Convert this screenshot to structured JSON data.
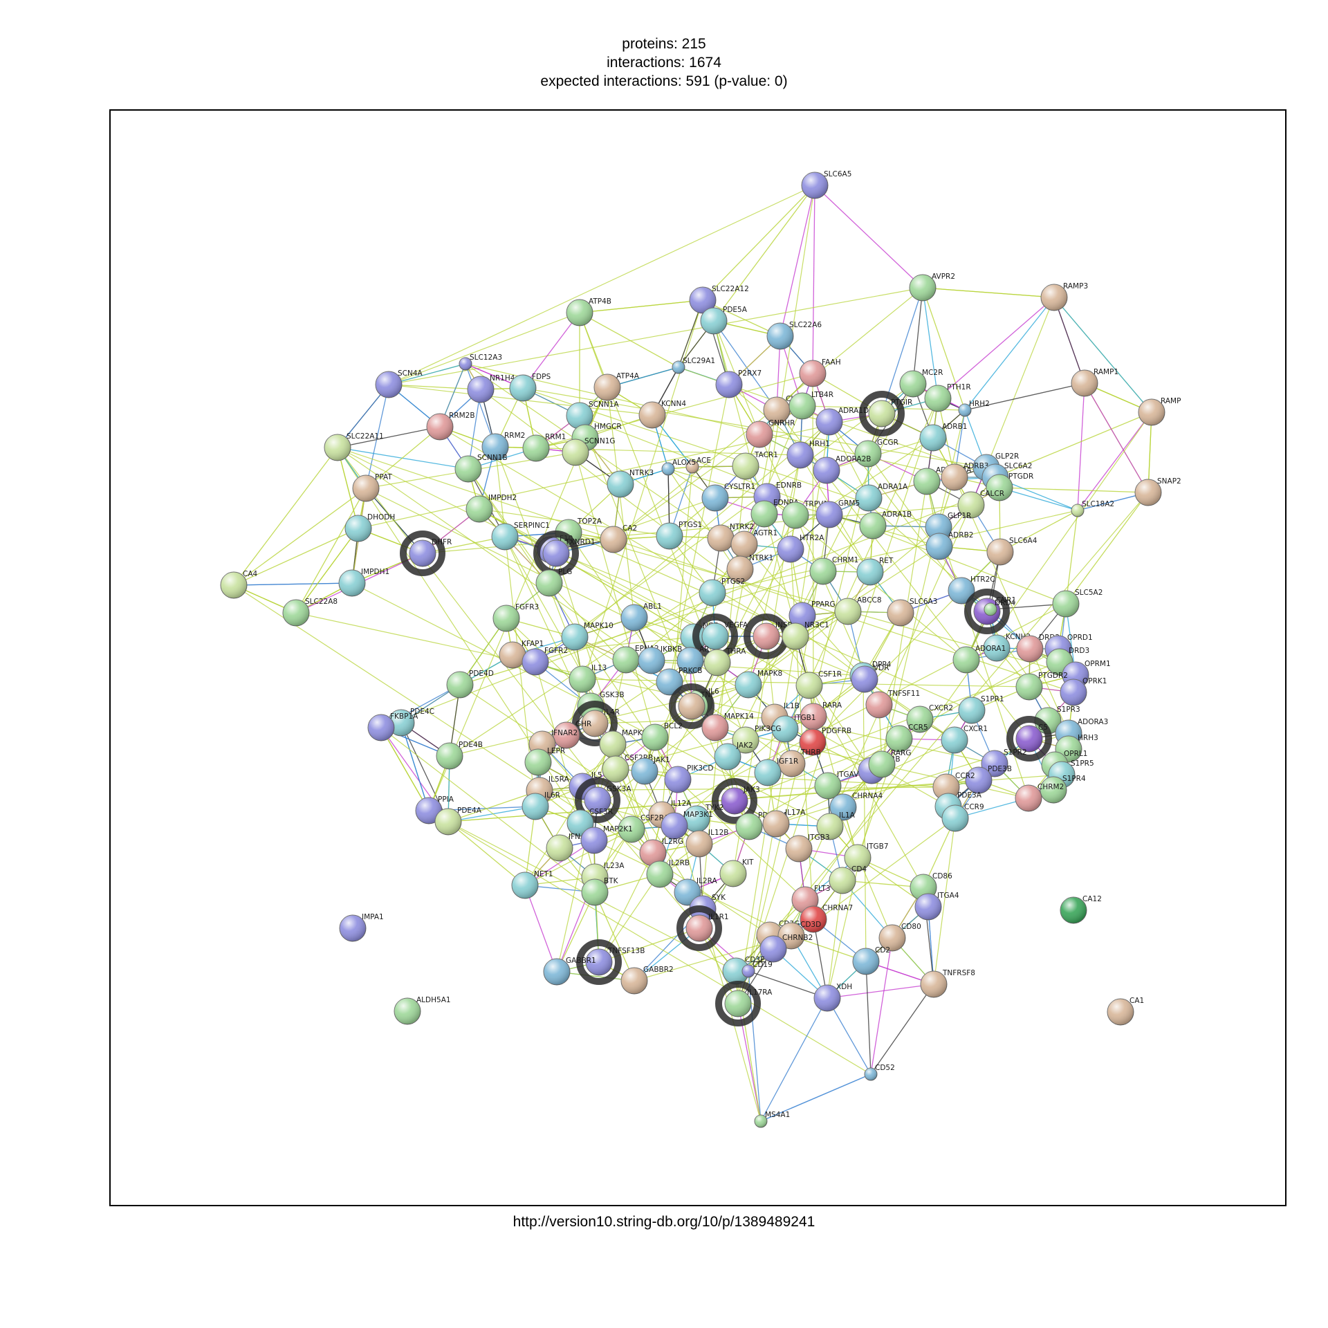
{
  "header": {
    "proteins": "proteins: 215",
    "interactions": "interactions: 1674",
    "expected": "expected interactions: 591 (p-value: 0)"
  },
  "footer": {
    "url": "http://version10.string-db.org/10/p/1389489241"
  },
  "colors": {
    "edge_textmining": "#b6d334",
    "edge_experimental": "#c63bd0",
    "edge_database": "#2ba7d8",
    "edge_coexpression": "#333333",
    "edge_coexpression_blue": "#3a7fcf",
    "highlight_ring": "#2b2b2b",
    "node_palette": [
      "#9fd89a",
      "#8f8fe0",
      "#8ad0d4",
      "#d8b79a",
      "#e09a9a",
      "#c9e2a0",
      "#b0e0b0",
      "#7fb8d8",
      "#8c5fd0",
      "#e04848",
      "#3aa65a"
    ]
  },
  "nodes": [
    {
      "id": "SLC6A5",
      "c": 1
    },
    {
      "id": "AVPR2",
      "c": 0
    },
    {
      "id": "RAMP3",
      "c": 3
    },
    {
      "id": "RAMP1",
      "c": 3
    },
    {
      "id": "RAMP",
      "c": 3
    },
    {
      "id": "SNAP2",
      "c": 3
    },
    {
      "id": "SLC22A12",
      "c": 1
    },
    {
      "id": "PDE5A",
      "c": 2
    },
    {
      "id": "ATP4B",
      "c": 0
    },
    {
      "id": "SLC22A6",
      "c": 7
    },
    {
      "id": "SLC12A3",
      "c": 1
    },
    {
      "id": "SLC29A1",
      "c": 7
    },
    {
      "id": "P2RX7",
      "c": 1
    },
    {
      "id": "FAAH",
      "c": 4
    },
    {
      "id": "MC2R",
      "c": 0
    },
    {
      "id": "PTH1R",
      "c": 0
    },
    {
      "id": "SCN4A",
      "c": 1
    },
    {
      "id": "NR1H4",
      "c": 1
    },
    {
      "id": "FDPS",
      "c": 2
    },
    {
      "id": "ATP4A",
      "c": 3
    },
    {
      "id": "SCNN1A",
      "c": 2
    },
    {
      "id": "KCNN4",
      "c": 3
    },
    {
      "id": "CHRM3",
      "c": 3
    },
    {
      "id": "LTB4R",
      "c": 0
    },
    {
      "id": "PTGIR",
      "c": 5,
      "ring": true
    },
    {
      "id": "HRH2",
      "c": 7
    },
    {
      "id": "ADRA1D",
      "c": 1
    },
    {
      "id": "RRM2B",
      "c": 4
    },
    {
      "id": "HMGCR",
      "c": 0
    },
    {
      "id": "GNRHR",
      "c": 4
    },
    {
      "id": "ADRB1",
      "c": 2
    },
    {
      "id": "SLC22A11",
      "c": 5
    },
    {
      "id": "RRM2",
      "c": 7
    },
    {
      "id": "RRM1",
      "c": 0
    },
    {
      "id": "SCNN1G",
      "c": 5
    },
    {
      "id": "HRH1",
      "c": 1
    },
    {
      "id": "GCGR",
      "c": 0
    },
    {
      "id": "GLP2R",
      "c": 7
    },
    {
      "id": "SCNN1B",
      "c": 0
    },
    {
      "id": "ACE",
      "c": 3
    },
    {
      "id": "ALOX5",
      "c": 7
    },
    {
      "id": "TACR1",
      "c": 5
    },
    {
      "id": "ADORA2B",
      "c": 1
    },
    {
      "id": "ADORA2A",
      "c": 0
    },
    {
      "id": "ADRB3",
      "c": 3
    },
    {
      "id": "SLC6A2",
      "c": 7
    },
    {
      "id": "PTGDR",
      "c": 0
    },
    {
      "id": "PPAT",
      "c": 3
    },
    {
      "id": "IMPDH2",
      "c": 0
    },
    {
      "id": "NTRK3",
      "c": 2
    },
    {
      "id": "CYSLTR1",
      "c": 7
    },
    {
      "id": "EDNRB",
      "c": 1
    },
    {
      "id": "ADRA1A",
      "c": 2
    },
    {
      "id": "CALCR",
      "c": 5
    },
    {
      "id": "DHODH",
      "c": 2
    },
    {
      "id": "TOP2A",
      "c": 0
    },
    {
      "id": "SERPINC1",
      "c": 2
    },
    {
      "id": "F10",
      "c": 1
    },
    {
      "id": "NTRK2",
      "c": 3
    },
    {
      "id": "EDNRA",
      "c": 0
    },
    {
      "id": "TRPV1",
      "c": 0
    },
    {
      "id": "GRM5",
      "c": 1
    },
    {
      "id": "ADRA1B",
      "c": 0
    },
    {
      "id": "GLP1R",
      "c": 7
    },
    {
      "id": "SLC18A2",
      "c": 5
    },
    {
      "id": "DHFR",
      "c": 1,
      "ring": true
    },
    {
      "id": "TXNRD1",
      "c": 1,
      "ring": true
    },
    {
      "id": "CA2",
      "c": 3
    },
    {
      "id": "PTGS1",
      "c": 2
    },
    {
      "id": "AGTR1",
      "c": 3
    },
    {
      "id": "HTR2A",
      "c": 1
    },
    {
      "id": "ADRB2",
      "c": 7
    },
    {
      "id": "SLC6A4",
      "c": 3
    },
    {
      "id": "CA4",
      "c": 5
    },
    {
      "id": "IMPDH1",
      "c": 2
    },
    {
      "id": "PLG",
      "c": 0
    },
    {
      "id": "NTRK1",
      "c": 3
    },
    {
      "id": "CHRM1",
      "c": 0
    },
    {
      "id": "RET",
      "c": 2
    },
    {
      "id": "SLC22A8",
      "c": 0
    },
    {
      "id": "FGFR3",
      "c": 0
    },
    {
      "id": "PTGS2",
      "c": 2
    },
    {
      "id": "HTR2C",
      "c": 7
    },
    {
      "id": "CNR1",
      "c": 8,
      "ring": true
    },
    {
      "id": "DRD4",
      "c": 0
    },
    {
      "id": "SLC5A2",
      "c": 0
    },
    {
      "id": "ABL1",
      "c": 7
    },
    {
      "id": "PPARG",
      "c": 1
    },
    {
      "id": "ABCC8",
      "c": 5
    },
    {
      "id": "SLC6A3",
      "c": 3
    },
    {
      "id": "KFAP1",
      "c": 3
    },
    {
      "id": "MAPK10",
      "c": 2
    },
    {
      "id": "NGF",
      "c": 2
    },
    {
      "id": "VEGFA",
      "c": 2,
      "ring": true
    },
    {
      "id": "INSR",
      "c": 4,
      "ring": true
    },
    {
      "id": "NR3C1",
      "c": 5
    },
    {
      "id": "KCNH2",
      "c": 2
    },
    {
      "id": "DRD2",
      "c": 4
    },
    {
      "id": "OPRD1",
      "c": 1
    },
    {
      "id": "DRD3",
      "c": 0
    },
    {
      "id": "FGFR2",
      "c": 1
    },
    {
      "id": "EPHA2",
      "c": 0
    },
    {
      "id": "IKBKB",
      "c": 7
    },
    {
      "id": "AR",
      "c": 7
    },
    {
      "id": "THRA",
      "c": 5
    },
    {
      "id": "DPP4",
      "c": 2
    },
    {
      "id": "VDR",
      "c": 1
    },
    {
      "id": "ADORA1",
      "c": 0
    },
    {
      "id": "OPRM1",
      "c": 1
    },
    {
      "id": "PDE4D",
      "c": 0
    },
    {
      "id": "IL13",
      "c": 0
    },
    {
      "id": "PRKCB",
      "c": 7
    },
    {
      "id": "CSF1R",
      "c": 5
    },
    {
      "id": "PTGDR2",
      "c": 0
    },
    {
      "id": "OPRK1",
      "c": 1
    },
    {
      "id": "MAPK8",
      "c": 2
    },
    {
      "id": "TNFSF11",
      "c": 4
    },
    {
      "id": "GSK3B",
      "c": 0
    },
    {
      "id": "IL6",
      "c": 0
    },
    {
      "id": "TNF",
      "c": 3,
      "ring": true
    },
    {
      "id": "S1PR1",
      "c": 2
    },
    {
      "id": "PDE4C",
      "c": 2
    },
    {
      "id": "FKBP1A",
      "c": 1
    },
    {
      "id": "IL4R",
      "c": 3,
      "ring": true
    },
    {
      "id": "IL1B",
      "c": 3
    },
    {
      "id": "RARA",
      "c": 4
    },
    {
      "id": "CXCR2",
      "c": 0
    },
    {
      "id": "S1PR3",
      "c": 0
    },
    {
      "id": "GHR",
      "c": 4
    },
    {
      "id": "MAPK14",
      "c": 4
    },
    {
      "id": "ITGB1",
      "c": 2
    },
    {
      "id": "PDGFRB",
      "c": 9
    },
    {
      "id": "CCR5",
      "c": 0
    },
    {
      "id": "CXCR1",
      "c": 2
    },
    {
      "id": "C5",
      "c": 8,
      "ring": true
    },
    {
      "id": "ADORA3",
      "c": 7
    },
    {
      "id": "IFNAR2",
      "c": 3
    },
    {
      "id": "MAPK9",
      "c": 5
    },
    {
      "id": "BCL2",
      "c": 0
    },
    {
      "id": "PIK3CG",
      "c": 5
    },
    {
      "id": "HRH3",
      "c": 0
    },
    {
      "id": "PDE4B",
      "c": 0
    },
    {
      "id": "LEPR",
      "c": 0
    },
    {
      "id": "JAK2",
      "c": 2
    },
    {
      "id": "THRB",
      "c": 3
    },
    {
      "id": "RARB",
      "c": 1
    },
    {
      "id": "RARG",
      "c": 0
    },
    {
      "id": "S1PR2",
      "c": 1
    },
    {
      "id": "OPRL1",
      "c": 0
    },
    {
      "id": "CSF2RB",
      "c": 5
    },
    {
      "id": "JAK1",
      "c": 7
    },
    {
      "id": "PIK3CD",
      "c": 1
    },
    {
      "id": "IGF1R",
      "c": 2
    },
    {
      "id": "PDE3B",
      "c": 1
    },
    {
      "id": "S1PR5",
      "c": 2
    },
    {
      "id": "IL5",
      "c": 1
    },
    {
      "id": "IL5RA",
      "c": 3
    },
    {
      "id": "GSK3A",
      "c": 1,
      "ring": true
    },
    {
      "id": "JAK3",
      "c": 8,
      "ring": true
    },
    {
      "id": "ITGAV",
      "c": 0
    },
    {
      "id": "CCR2",
      "c": 3
    },
    {
      "id": "S1PR4",
      "c": 0
    },
    {
      "id": "PPIA",
      "c": 1
    },
    {
      "id": "IL6R",
      "c": 2
    },
    {
      "id": "CHRNA4",
      "c": 7
    },
    {
      "id": "CHRM2",
      "c": 4
    },
    {
      "id": "PDE4A",
      "c": 5
    },
    {
      "id": "IL12A",
      "c": 3
    },
    {
      "id": "TYK2",
      "c": 2
    },
    {
      "id": "PDE3A",
      "c": 2
    },
    {
      "id": "CCR9",
      "c": 2
    },
    {
      "id": "CSF3R",
      "c": 2
    },
    {
      "id": "CSF2RA",
      "c": 0
    },
    {
      "id": "MAP3K1",
      "c": 1
    },
    {
      "id": "PDGFRA",
      "c": 0
    },
    {
      "id": "IL17A",
      "c": 3
    },
    {
      "id": "IL1A",
      "c": 5
    },
    {
      "id": "IFNAR1",
      "c": 5
    },
    {
      "id": "MAP2K1",
      "c": 1
    },
    {
      "id": "IL12B",
      "c": 3
    },
    {
      "id": "IL2RG",
      "c": 4
    },
    {
      "id": "ITGB3",
      "c": 3
    },
    {
      "id": "ITGB7",
      "c": 5
    },
    {
      "id": "NET1",
      "c": 2
    },
    {
      "id": "IL23A",
      "c": 5
    },
    {
      "id": "IL2RB",
      "c": 0
    },
    {
      "id": "KIT",
      "c": 5
    },
    {
      "id": "CD4",
      "c": 5
    },
    {
      "id": "CD86",
      "c": 0
    },
    {
      "id": "BTK",
      "c": 0
    },
    {
      "id": "IL2RA",
      "c": 7
    },
    {
      "id": "FLT3",
      "c": 4
    },
    {
      "id": "ITGA4",
      "c": 1
    },
    {
      "id": "CA12",
      "c": 10
    },
    {
      "id": "IMPA1",
      "c": 1
    },
    {
      "id": "SYK",
      "c": 1
    },
    {
      "id": "IL1R1",
      "c": 4,
      "ring": true
    },
    {
      "id": "CHRNA7",
      "c": 9
    },
    {
      "id": "CD3G",
      "c": 3
    },
    {
      "id": "CD3D",
      "c": 3
    },
    {
      "id": "CD80",
      "c": 3
    },
    {
      "id": "TNFSF13B",
      "c": 1,
      "ring": true
    },
    {
      "id": "CHRNB2",
      "c": 1
    },
    {
      "id": "CD2",
      "c": 7
    },
    {
      "id": "GABBR1",
      "c": 7
    },
    {
      "id": "GABBR2",
      "c": 3
    },
    {
      "id": "CD3E",
      "c": 2
    },
    {
      "id": "CD19",
      "c": 1
    },
    {
      "id": "TNFRSF8",
      "c": 3
    },
    {
      "id": "IL17RA",
      "c": 0,
      "ring": true
    },
    {
      "id": "XDH",
      "c": 1
    },
    {
      "id": "ALDH5A1",
      "c": 0
    },
    {
      "id": "CA1",
      "c": 3
    },
    {
      "id": "CD52",
      "c": 7
    },
    {
      "id": "MS4A1",
      "c": 0
    }
  ]
}
